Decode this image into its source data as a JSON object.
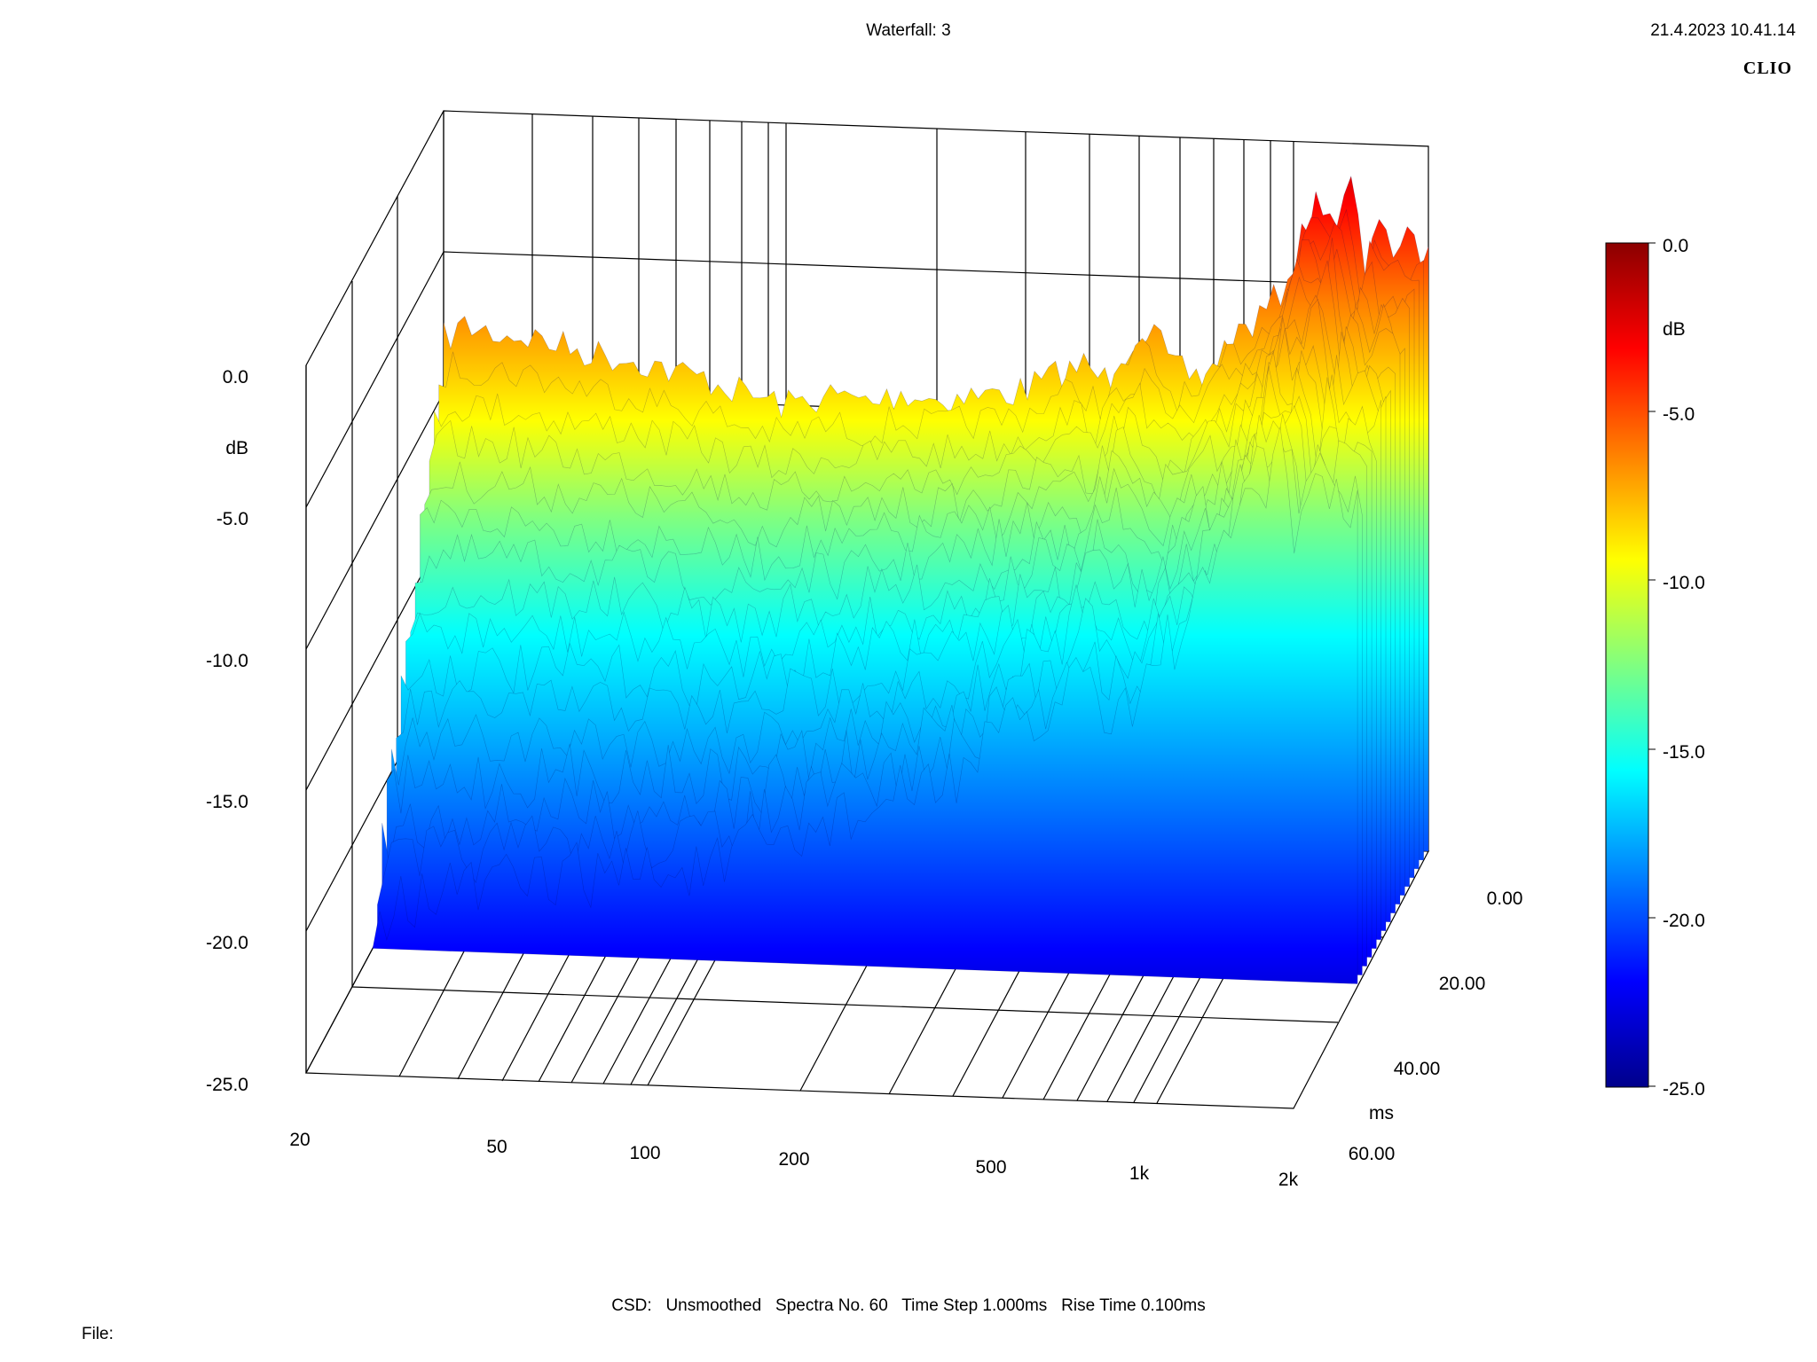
{
  "header": {
    "title": "Waterfall: 3",
    "timestamp": "21.4.2023 10.41.14",
    "brand": "CLIO"
  },
  "footer": {
    "settings": "CSD:   Unsmoothed   Spectra No. 60   Time Step 1.000ms   Rise Time 0.100ms",
    "file_label": "File:"
  },
  "colors": {
    "colormap": [
      "#00008b",
      "#0000ff",
      "#0080ff",
      "#00ffff",
      "#80ff80",
      "#ffff00",
      "#ff8000",
      "#ff0000",
      "#8b0000"
    ],
    "grid": "#000000",
    "background": "#ffffff"
  },
  "chart_data": {
    "type": "waterfall",
    "x_axis": {
      "label": "",
      "scale": "log",
      "range": [
        20,
        2000
      ],
      "ticks": [
        20,
        50,
        100,
        200,
        500,
        1000,
        2000
      ],
      "tick_labels": [
        "20",
        "50",
        "100",
        "200",
        "500",
        "1k",
        "2k"
      ]
    },
    "y_axis": {
      "label": "dB",
      "range": [
        -25,
        0
      ],
      "ticks": [
        0,
        -5,
        -10,
        -15,
        -20,
        -25
      ],
      "tick_labels": [
        "0.0",
        "-5.0",
        "-10.0",
        "-15.0",
        "-20.0",
        "-25.0"
      ]
    },
    "z_axis": {
      "label": "ms",
      "range": [
        0,
        60
      ],
      "ticks": [
        0,
        20,
        40,
        60
      ],
      "tick_labels": [
        "0.00",
        "20.00",
        "40.00",
        "60.00"
      ]
    },
    "colorbar": {
      "label": "dB",
      "range": [
        -25,
        0
      ],
      "ticks": [
        0,
        -5,
        -10,
        -15,
        -20,
        -25
      ],
      "tick_labels": [
        "0.0",
        "-5.0",
        "-10.0",
        "-15.0",
        "-20.0",
        "-25.0"
      ]
    },
    "first_spectrum_approx": {
      "x": [
        20,
        22,
        25,
        30,
        35,
        40,
        50,
        60,
        70,
        80,
        100,
        120,
        150,
        170,
        200,
        250,
        300,
        350,
        400,
        450,
        500,
        550,
        600,
        700,
        800,
        900,
        1000,
        1100,
        1200,
        1300,
        1400,
        1500,
        1600,
        1700,
        1800,
        2000
      ],
      "y": [
        -7.5,
        -7.0,
        -7.2,
        -7.3,
        -7.6,
        -7.8,
        -8.0,
        -8.4,
        -8.6,
        -9.0,
        -9.4,
        -9.0,
        -9.2,
        -8.8,
        -9.0,
        -8.8,
        -8.6,
        -8.0,
        -7.6,
        -8.2,
        -6.6,
        -6.2,
        -7.6,
        -8.0,
        -6.4,
        -5.8,
        -4.8,
        -3.0,
        -1.2,
        -2.2,
        -0.8,
        -4.4,
        -1.4,
        -3.2,
        -2.8,
        -3.4
      ]
    }
  }
}
